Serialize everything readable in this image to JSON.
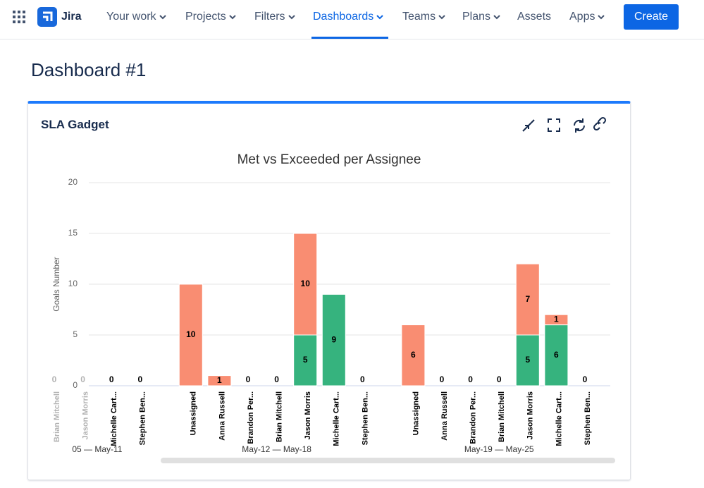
{
  "nav": {
    "logo": "Jira",
    "items": [
      "Your work",
      "Projects",
      "Filters",
      "Dashboards",
      "Teams",
      "Plans",
      "Assets",
      "Apps"
    ],
    "create": "Create"
  },
  "page": {
    "title": "Dashboard #1"
  },
  "gadget": {
    "title": "SLA Gadget"
  },
  "chart_data": {
    "type": "bar",
    "stacked": true,
    "title": "Met vs Exceeded per Assignee",
    "y_label": "Goals Number",
    "ylim": [
      0,
      20
    ],
    "yticks": [
      0,
      5,
      10,
      15,
      20
    ],
    "grid": true,
    "groups": [
      {
        "label": "05 — May-11",
        "categories": [
          "Brian Mitchell",
          "Jason Morris",
          "Michelle Cart...",
          "Stephen Ben..."
        ]
      },
      {
        "label": "May-12 — May-18",
        "categories": [
          "Unassigned",
          "Anna Russell",
          "Brandon Per...",
          "Brian Mitchell",
          "Jason Morris",
          "Michelle Cart...",
          "Stephen Ben..."
        ]
      },
      {
        "label": "May-19 — May-25",
        "categories": [
          "Unassigned",
          "Anna Russell",
          "Brandon Per...",
          "Brian Mitchell",
          "Jason Morris",
          "Michelle Cart...",
          "Stephen Ben..."
        ]
      }
    ],
    "series": [
      {
        "color": "#36b37e",
        "values": [
          0,
          0,
          0,
          0,
          0,
          0,
          0,
          0,
          5,
          9,
          0,
          0,
          0,
          0,
          0,
          5,
          6,
          0
        ]
      },
      {
        "color": "#f98d72",
        "values": [
          0,
          0,
          0,
          0,
          10,
          1,
          0,
          0,
          10,
          0,
          0,
          6,
          0,
          0,
          0,
          7,
          1,
          0
        ]
      }
    ]
  }
}
